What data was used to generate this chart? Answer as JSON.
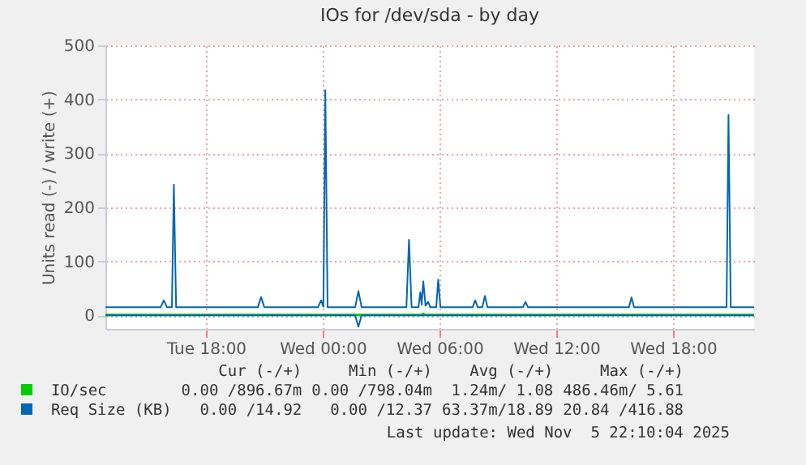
{
  "chart_data": {
    "type": "line",
    "title": "IOs for /dev/sda - by day",
    "ylabel": "Units read (-) / write (+)",
    "xlim": [
      "2025-11-04T12:50",
      "2025-11-05T22:10"
    ],
    "xticks": [
      {
        "value": "2025-11-04T18:00",
        "label": "Tue 18:00"
      },
      {
        "value": "2025-11-05T00:00",
        "label": "Wed 00:00"
      },
      {
        "value": "2025-11-05T06:00",
        "label": "Wed 06:00"
      },
      {
        "value": "2025-11-05T12:00",
        "label": "Wed 12:00"
      },
      {
        "value": "2025-11-05T18:00",
        "label": "Wed 18:00"
      }
    ],
    "ylim": [
      -25,
      500
    ],
    "yticks": [
      0,
      100,
      200,
      300,
      400,
      500
    ],
    "grid": true,
    "legend": "bottom",
    "line_style": "solid",
    "marker": "none",
    "series": [
      {
        "name": "IO/sec",
        "color": "#00cc00",
        "x": [
          "2025-11-04T12:50",
          "2025-11-05T05:05",
          "2025-11-05T05:10",
          "2025-11-05T05:15",
          "2025-11-05T22:10"
        ],
        "values": [
          1,
          1,
          3,
          1,
          1
        ]
      },
      {
        "name": "Req Size (KB)",
        "color": "#0066b3",
        "x": [
          "2025-11-04T12:50",
          "2025-11-04T15:40",
          "2025-11-04T15:50",
          "2025-11-04T16:00",
          "2025-11-04T16:15",
          "2025-11-04T16:21",
          "2025-11-04T16:28",
          "2025-11-04T20:40",
          "2025-11-04T20:50",
          "2025-11-04T21:00",
          "2025-11-04T23:45",
          "2025-11-04T23:55",
          "2025-11-05T00:02",
          "2025-11-05T00:08",
          "2025-11-05T00:15",
          "2025-11-05T01:40",
          "2025-11-05T01:50",
          "2025-11-05T02:00",
          "2025-11-05T04:18",
          "2025-11-05T04:26",
          "2025-11-05T04:34",
          "2025-11-05T04:55",
          "2025-11-05T05:01",
          "2025-11-05T05:05",
          "2025-11-05T05:10",
          "2025-11-05T05:17",
          "2025-11-05T05:25",
          "2025-11-05T05:32",
          "2025-11-05T05:50",
          "2025-11-05T05:56",
          "2025-11-05T06:03",
          "2025-11-05T07:42",
          "2025-11-05T07:50",
          "2025-11-05T07:58",
          "2025-11-05T08:12",
          "2025-11-05T08:20",
          "2025-11-05T08:28",
          "2025-11-05T10:17",
          "2025-11-05T10:25",
          "2025-11-05T10:33",
          "2025-11-05T15:44",
          "2025-11-05T15:52",
          "2025-11-05T16:00",
          "2025-11-05T20:45",
          "2025-11-05T20:51",
          "2025-11-05T20:58",
          "2025-11-05T22:10"
        ],
        "values": [
          15,
          15,
          28,
          15,
          15,
          242,
          15,
          15,
          34,
          15,
          15,
          28,
          16,
          417,
          15,
          15,
          45,
          15,
          15,
          140,
          15,
          15,
          43,
          20,
          63,
          18,
          25,
          15,
          15,
          66,
          15,
          15,
          28,
          15,
          15,
          36,
          15,
          15,
          25,
          15,
          15,
          33,
          15,
          15,
          371,
          15,
          15
        ]
      },
      {
        "color": "#0066b3",
        "x": [
          "2025-11-04T12:50",
          "2025-11-05T01:40",
          "2025-11-05T01:50",
          "2025-11-05T02:00",
          "2025-11-05T22:10"
        ],
        "values": [
          0,
          0,
          -21,
          0,
          0
        ]
      }
    ],
    "annotations": [
      "Cur (-/+)",
      "Min (-/+)",
      "Avg (-/+)",
      "Max (-/+)",
      "0.00 /896.67m",
      "0.00 /798.04m",
      "1.24m/ 1.08",
      "486.46m/ 5.61",
      "0.00 /14.92",
      "0.00 /12.37",
      "63.37m/18.89",
      "20.84 /416.88",
      "Last update: Wed Nov  5 22:10:04 2025"
    ]
  }
}
